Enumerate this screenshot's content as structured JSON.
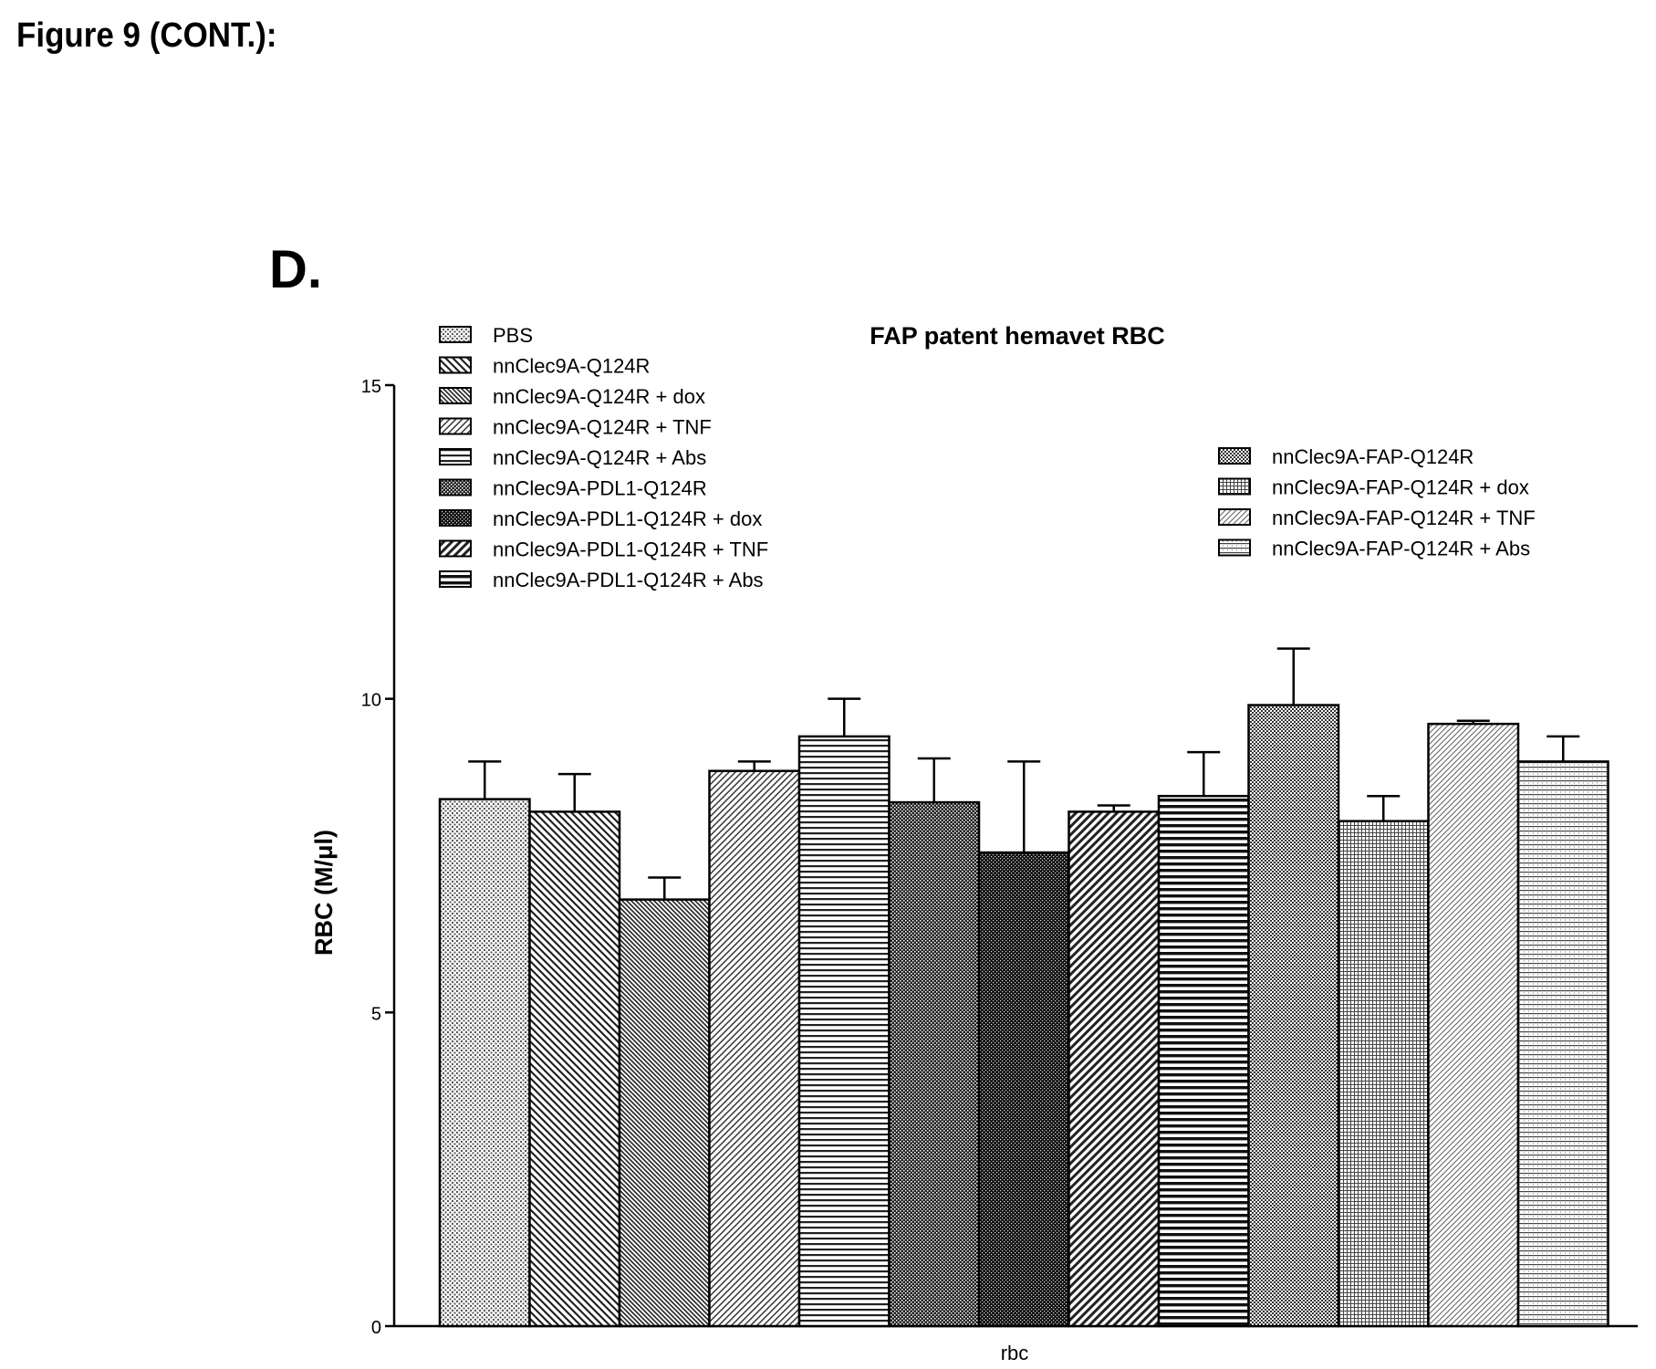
{
  "figure_title": "Figure 9 (CONT.):",
  "panel_label": "D.",
  "chart_data": {
    "type": "bar",
    "title": "FAP patent hemavet RBC",
    "xlabel": "rbc",
    "ylabel": "RBC (M/μl)",
    "ylim": [
      0,
      15
    ],
    "yticks": [
      0,
      5,
      10,
      15
    ],
    "categories": [
      "rbc"
    ],
    "legend_placement": "top, in two columns",
    "series": [
      {
        "name": "PBS",
        "value": 8.4,
        "error": 0.6,
        "pattern": "fine-dots"
      },
      {
        "name": "nnClec9A-Q124R",
        "value": 8.2,
        "error": 0.6,
        "pattern": "diag-down"
      },
      {
        "name": "nnClec9A-Q124R + dox",
        "value": 6.8,
        "error": 0.35,
        "pattern": "diag-down-dense"
      },
      {
        "name": "nnClec9A-Q124R + TNF",
        "value": 8.85,
        "error": 0.15,
        "pattern": "diag-up"
      },
      {
        "name": "nnClec9A-Q124R + Abs",
        "value": 9.4,
        "error": 0.6,
        "pattern": "horizontal"
      },
      {
        "name": "nnClec9A-PDL1-Q124R",
        "value": 8.35,
        "error": 0.7,
        "pattern": "checker-dark"
      },
      {
        "name": "nnClec9A-PDL1-Q124R + dox",
        "value": 7.55,
        "error": 1.45,
        "pattern": "checker-darker"
      },
      {
        "name": "nnClec9A-PDL1-Q124R + TNF",
        "value": 8.2,
        "error": 0.1,
        "pattern": "diag-up-bold"
      },
      {
        "name": "nnClec9A-PDL1-Q124R + Abs",
        "value": 8.45,
        "error": 0.7,
        "pattern": "horizontal-bold"
      },
      {
        "name": "nnClec9A-FAP-Q124R",
        "value": 9.9,
        "error": 0.9,
        "pattern": "checker-fine"
      },
      {
        "name": "nnClec9A-FAP-Q124R + dox",
        "value": 8.05,
        "error": 0.4,
        "pattern": "grid-fine"
      },
      {
        "name": "nnClec9A-FAP-Q124R + TNF",
        "value": 9.6,
        "error": 0.05,
        "pattern": "diag-up-light"
      },
      {
        "name": "nnClec9A-FAP-Q124R + Abs",
        "value": 9.0,
        "error": 0.4,
        "pattern": "horizontal-light"
      }
    ]
  }
}
